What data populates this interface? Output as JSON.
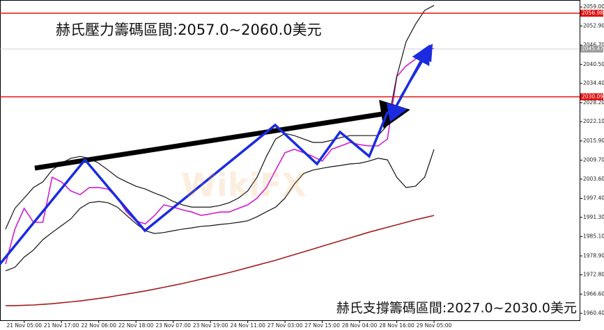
{
  "chart_data": {
    "type": "line",
    "categories": [
      null,
      null,
      "21 Nov 05:00",
      null,
      null,
      null,
      "21 Nov 17:00",
      null,
      null,
      null,
      "22 Nov 06:00",
      null,
      null,
      null,
      "22 Nov 18:00",
      null,
      null,
      null,
      "23 Nov 07:00",
      null,
      null,
      null,
      "23 Nov 19:00",
      null,
      null,
      null,
      "24 Nov 11:00",
      null,
      null,
      null,
      "27 Nov 03:00",
      null,
      null,
      null,
      "27 Nov 15:00",
      null,
      null,
      null,
      "28 Nov 04:00",
      null,
      null,
      null,
      "28 Nov 16:00",
      null,
      null,
      null,
      "29 Nov 05:00"
    ],
    "series": [
      {
        "color": "#d21ad2",
        "width": 1.6,
        "values": [
          1976.3,
          1987.5,
          1994.2,
          1989.7,
          1989.7,
          2004.2,
          2002.7,
          1999.8,
          1998.6,
          2000.9,
          2000.9,
          2000.4,
          1997.5,
          1993.0,
          1990.1,
          1989.2,
          1991.9,
          1995.3,
          1994.6,
          1993.7,
          1993.0,
          1991.9,
          1992.4,
          1993.0,
          1993.0,
          1994.2,
          1995.3,
          1997.5,
          2000.9,
          2006.5,
          2012.1,
          2013.2,
          2012.1,
          2010.9,
          2009.4,
          2013.2,
          2014.3,
          2015.4,
          2014.7,
          2014.3,
          2014.3,
          2016.5,
          2036.6,
          2040.0,
          2042.2,
          2045.6,
          2045.6
        ]
      },
      {
        "color": "#111111",
        "width": 1.2,
        "values": [
          1987.5,
          1994.2,
          1997.5,
          2000.9,
          2002.7,
          2006.5,
          2008.7,
          2010.3,
          2010.9,
          2010.3,
          2008.7,
          2006.5,
          2004.2,
          2002.7,
          2001.3,
          2000.4,
          1999.1,
          1998.0,
          1996.4,
          1995.3,
          1994.6,
          1994.6,
          1994.6,
          1995.1,
          1996.0,
          1997.5,
          1999.8,
          2004.2,
          2010.9,
          2016.5,
          2018.3,
          2017.6,
          2016.5,
          2015.4,
          2015.4,
          2016.1,
          2017.0,
          2017.6,
          2017.6,
          2017.6,
          2017.6,
          2021.0,
          2036.6,
          2047.8,
          2053.4,
          2057.9,
          2059.5
        ]
      },
      {
        "color": "#111111",
        "width": 1.2,
        "values": [
          1974.1,
          1975.2,
          1978.5,
          1980.8,
          1984.1,
          1986.4,
          1988.6,
          1990.8,
          1994.2,
          1996.0,
          1996.4,
          1996.0,
          1994.6,
          1991.9,
          1989.3,
          1987.0,
          1986.1,
          1986.4,
          1987.0,
          1987.5,
          1987.9,
          1988.4,
          1988.6,
          1989.0,
          1989.3,
          1989.7,
          1990.2,
          1991.5,
          1993.1,
          1994.6,
          1997.5,
          2002.0,
          2005.4,
          2006.5,
          2007.1,
          2007.6,
          2008.0,
          2008.5,
          2008.7,
          2009.4,
          2010.3,
          2009.8,
          2004.2,
          2000.9,
          2001.3,
          2004.2,
          2013.2
        ]
      },
      {
        "color": "#a51c1c",
        "width": 1.6,
        "values": [
          1962.9,
          1962.9,
          1963.0,
          1963.1,
          1963.3,
          1963.5,
          1963.8,
          1964.1,
          1964.4,
          1964.8,
          1965.2,
          1965.6,
          1966.1,
          1966.6,
          1967.1,
          1967.6,
          1968.2,
          1968.8,
          1969.4,
          1970.0,
          1970.7,
          1971.4,
          1972.1,
          1972.8,
          1973.5,
          1974.3,
          1975.1,
          1975.9,
          1976.7,
          1977.5,
          1978.4,
          1979.3,
          1980.2,
          1981.1,
          1982.0,
          1982.9,
          1983.8,
          1984.7,
          1985.6,
          1986.5,
          1987.3,
          1988.1,
          1988.9,
          1989.7,
          1990.5,
          1991.2,
          1991.9
        ]
      }
    ],
    "levels": [
      {
        "value": 2056.98,
        "color": "#e01010"
      },
      {
        "value": 2030.09,
        "color": "#e01010"
      },
      {
        "value": 2045.47,
        "color": "#9a9a9a"
      }
    ],
    "ylim": [
      1957.95,
      2061.24
    ],
    "yticks": [
      {
        "value": 2059,
        "label": "2059.00"
      },
      {
        "value": 2052.9,
        "label": "2052.90"
      },
      {
        "value": 2046.7,
        "label": "2046.70"
      },
      {
        "value": 2040.5,
        "label": "2040.50"
      },
      {
        "value": 2034.4,
        "label": "2034.40"
      },
      {
        "value": 2028.2,
        "label": "2028.20"
      },
      {
        "value": 2022.1,
        "label": "2022.10"
      },
      {
        "value": 2015.9,
        "label": "2015.90"
      },
      {
        "value": 2009.7,
        "label": "2009.70"
      },
      {
        "value": 2003.6,
        "label": "2003.60"
      },
      {
        "value": 1997.4,
        "label": "1997.40"
      },
      {
        "value": 1991.3,
        "label": "1991.30"
      },
      {
        "value": 1985.1,
        "label": "1985.10"
      },
      {
        "value": 1978.9,
        "label": "1978.90"
      },
      {
        "value": 1972.8,
        "label": "1972.80"
      },
      {
        "value": 1966.6,
        "label": "1966.60"
      },
      {
        "value": 1960.4,
        "label": "1960.40"
      }
    ],
    "annotations": [
      "赫氏壓力籌碼區間:2057.0~2060.0美元",
      "赫氏支撐籌碼區間:2027.0~2030.0美元"
    ],
    "watermark": "WikiFX"
  }
}
